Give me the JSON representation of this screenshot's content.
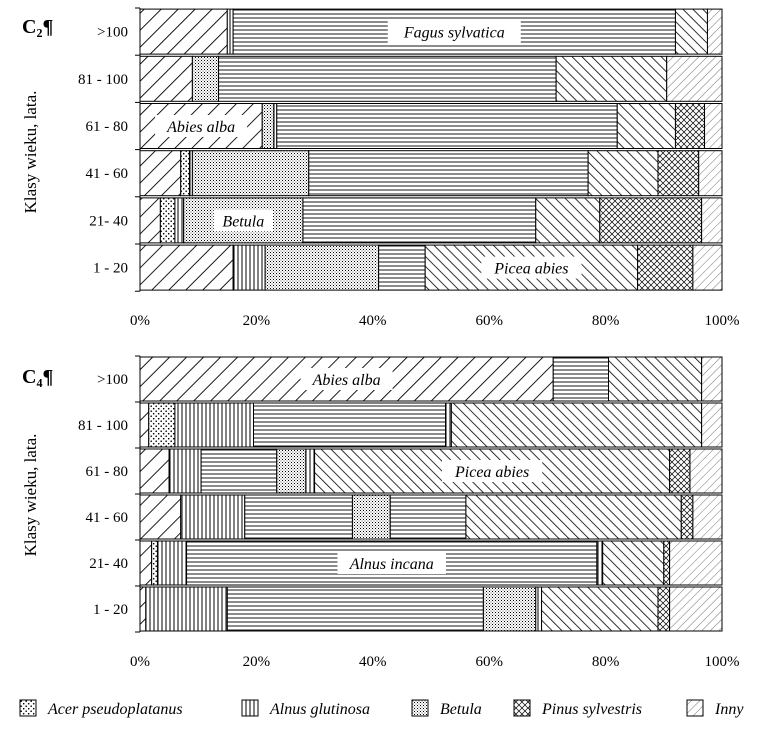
{
  "legend": [
    {
      "key": "acer",
      "label": "Acer pseudoplatanus",
      "pattern": "dots"
    },
    {
      "key": "alnusg",
      "label": "Alnus glutinosa",
      "pattern": "vlines"
    },
    {
      "key": "betula",
      "label": "Betula",
      "pattern": "dense-dots"
    },
    {
      "key": "pinus",
      "label": "Pinus sylvestris",
      "pattern": "crosshatch"
    },
    {
      "key": "inny",
      "label": "Inny",
      "pattern": "light-diag"
    }
  ],
  "chart_data": [
    {
      "type": "bar",
      "orientation": "horizontal",
      "stacked": "percent",
      "title": "C₂¶",
      "ylabel": "Klasy wieku, lata.",
      "categories": [
        ">100",
        "81 - 100",
        "61 - 80",
        "41 - 60",
        "21- 40",
        "1 - 20"
      ],
      "xticks": [
        "0%",
        "20%",
        "40%",
        "60%",
        "80%",
        "100%"
      ],
      "xlim": [
        0,
        100
      ],
      "segments": [
        {
          "label": ">100",
          "values": [
            {
              "p": "diag-wide",
              "v": 15
            },
            {
              "p": "vlines",
              "v": 1
            },
            {
              "p": "hlines",
              "v": 76,
              "label": "Fagus sylvatica"
            },
            {
              "p": "diag-bold",
              "v": 5.5
            },
            {
              "p": "light-diag",
              "v": 2.5
            }
          ]
        },
        {
          "label": "81 - 100",
          "values": [
            {
              "p": "diag-wide",
              "v": 9
            },
            {
              "p": "dense-dots",
              "v": 4.5
            },
            {
              "p": "hlines",
              "v": 58
            },
            {
              "p": "diag-bold",
              "v": 19
            },
            {
              "p": "light-diag",
              "v": 9.5
            }
          ]
        },
        {
          "label": "61 - 80",
          "values": [
            {
              "p": "diag-wide",
              "v": 21,
              "label": "Abies alba"
            },
            {
              "p": "dense-dots",
              "v": 2
            },
            {
              "p": "vlines",
              "v": 0.5
            },
            {
              "p": "hlines",
              "v": 58.5
            },
            {
              "p": "diag-bold",
              "v": 10
            },
            {
              "p": "crosshatch",
              "v": 5
            },
            {
              "p": "light-diag",
              "v": 3
            }
          ]
        },
        {
          "label": "41 - 60",
          "values": [
            {
              "p": "diag-wide",
              "v": 7
            },
            {
              "p": "dots",
              "v": 1.5
            },
            {
              "p": "vlines",
              "v": 0.5
            },
            {
              "p": "dense-dots",
              "v": 20
            },
            {
              "p": "hlines",
              "v": 48
            },
            {
              "p": "diag-bold",
              "v": 12
            },
            {
              "p": "crosshatch",
              "v": 7
            },
            {
              "p": "light-diag",
              "v": 4
            }
          ]
        },
        {
          "label": "21- 40",
          "values": [
            {
              "p": "diag-wide",
              "v": 3.5
            },
            {
              "p": "dots",
              "v": 2.5
            },
            {
              "p": "vlines",
              "v": 1.5
            },
            {
              "p": "dense-dots",
              "v": 20.5,
              "label": "Betula"
            },
            {
              "p": "hlines",
              "v": 40
            },
            {
              "p": "diag-bold",
              "v": 11
            },
            {
              "p": "crosshatch",
              "v": 17.5
            },
            {
              "p": "light-diag",
              "v": 3.5
            }
          ]
        },
        {
          "label": "1 - 20",
          "values": [
            {
              "p": "diag-wide",
              "v": 16
            },
            {
              "p": "vlines",
              "v": 5.5
            },
            {
              "p": "dense-dots",
              "v": 19.5
            },
            {
              "p": "hlines",
              "v": 8
            },
            {
              "p": "diag-bold",
              "v": 36.5,
              "label": "Picea abies"
            },
            {
              "p": "crosshatch",
              "v": 9.5
            },
            {
              "p": "light-diag",
              "v": 5
            }
          ]
        }
      ]
    },
    {
      "type": "bar",
      "orientation": "horizontal",
      "stacked": "percent",
      "title": "C₄¶",
      "ylabel": "Klasy wieku, lata.",
      "categories": [
        ">100",
        "81 - 100",
        "61 - 80",
        "41 - 60",
        "21- 40",
        "1 - 20"
      ],
      "xticks": [
        "0%",
        "20%",
        "40%",
        "60%",
        "80%",
        "100%"
      ],
      "xlim": [
        0,
        100
      ],
      "segments": [
        {
          "label": ">100",
          "values": [
            {
              "p": "diag-wide",
              "v": 71,
              "label": "Abies alba"
            },
            {
              "p": "hlines",
              "v": 9.5
            },
            {
              "p": "diag-bold",
              "v": 16
            },
            {
              "p": "light-diag",
              "v": 3.5
            }
          ]
        },
        {
          "label": "81 - 100",
          "values": [
            {
              "p": "diag-wide",
              "v": 1.5
            },
            {
              "p": "dots",
              "v": 4.5
            },
            {
              "p": "vlines",
              "v": 13.5
            },
            {
              "p": "hlines",
              "v": 33
            },
            {
              "p": "vlines",
              "v": 1
            },
            {
              "p": "diag-bold",
              "v": 43
            },
            {
              "p": "light-diag",
              "v": 3.5
            }
          ]
        },
        {
          "label": "61 - 80",
          "values": [
            {
              "p": "diag-wide",
              "v": 5
            },
            {
              "p": "vlines",
              "v": 5.5
            },
            {
              "p": "hlines",
              "v": 13
            },
            {
              "p": "dense-dots",
              "v": 5
            },
            {
              "p": "vlines",
              "v": 1.5
            },
            {
              "p": "diag-bold",
              "v": 61,
              "label": "Picea abies"
            },
            {
              "p": "crosshatch",
              "v": 3.5
            },
            {
              "p": "light-diag",
              "v": 5.5
            }
          ]
        },
        {
          "label": "41 - 60",
          "values": [
            {
              "p": "diag-wide",
              "v": 7
            },
            {
              "p": "vlines",
              "v": 11
            },
            {
              "p": "hlines",
              "v": 18.5
            },
            {
              "p": "dense-dots",
              "v": 6.5
            },
            {
              "p": "hlines",
              "v": 13
            },
            {
              "p": "diag-bold",
              "v": 37
            },
            {
              "p": "crosshatch",
              "v": 2
            },
            {
              "p": "light-diag",
              "v": 5
            }
          ]
        },
        {
          "label": "21- 40",
          "values": [
            {
              "p": "diag-wide",
              "v": 2
            },
            {
              "p": "dots",
              "v": 1
            },
            {
              "p": "vlines",
              "v": 5
            },
            {
              "p": "hlines",
              "v": 70.5,
              "label": "Alnus incana"
            },
            {
              "p": "vlines",
              "v": 1
            },
            {
              "p": "diag-bold",
              "v": 10.5
            },
            {
              "p": "crosshatch",
              "v": 1
            },
            {
              "p": "light-diag",
              "v": 9
            }
          ]
        },
        {
          "label": "1 - 20",
          "values": [
            {
              "p": "diag-wide",
              "v": 1
            },
            {
              "p": "vlines",
              "v": 14
            },
            {
              "p": "hlines",
              "v": 44
            },
            {
              "p": "dense-dots",
              "v": 9
            },
            {
              "p": "vlines",
              "v": 1
            },
            {
              "p": "diag-bold",
              "v": 20
            },
            {
              "p": "crosshatch",
              "v": 2
            },
            {
              "p": "light-diag",
              "v": 9
            }
          ]
        }
      ]
    }
  ]
}
